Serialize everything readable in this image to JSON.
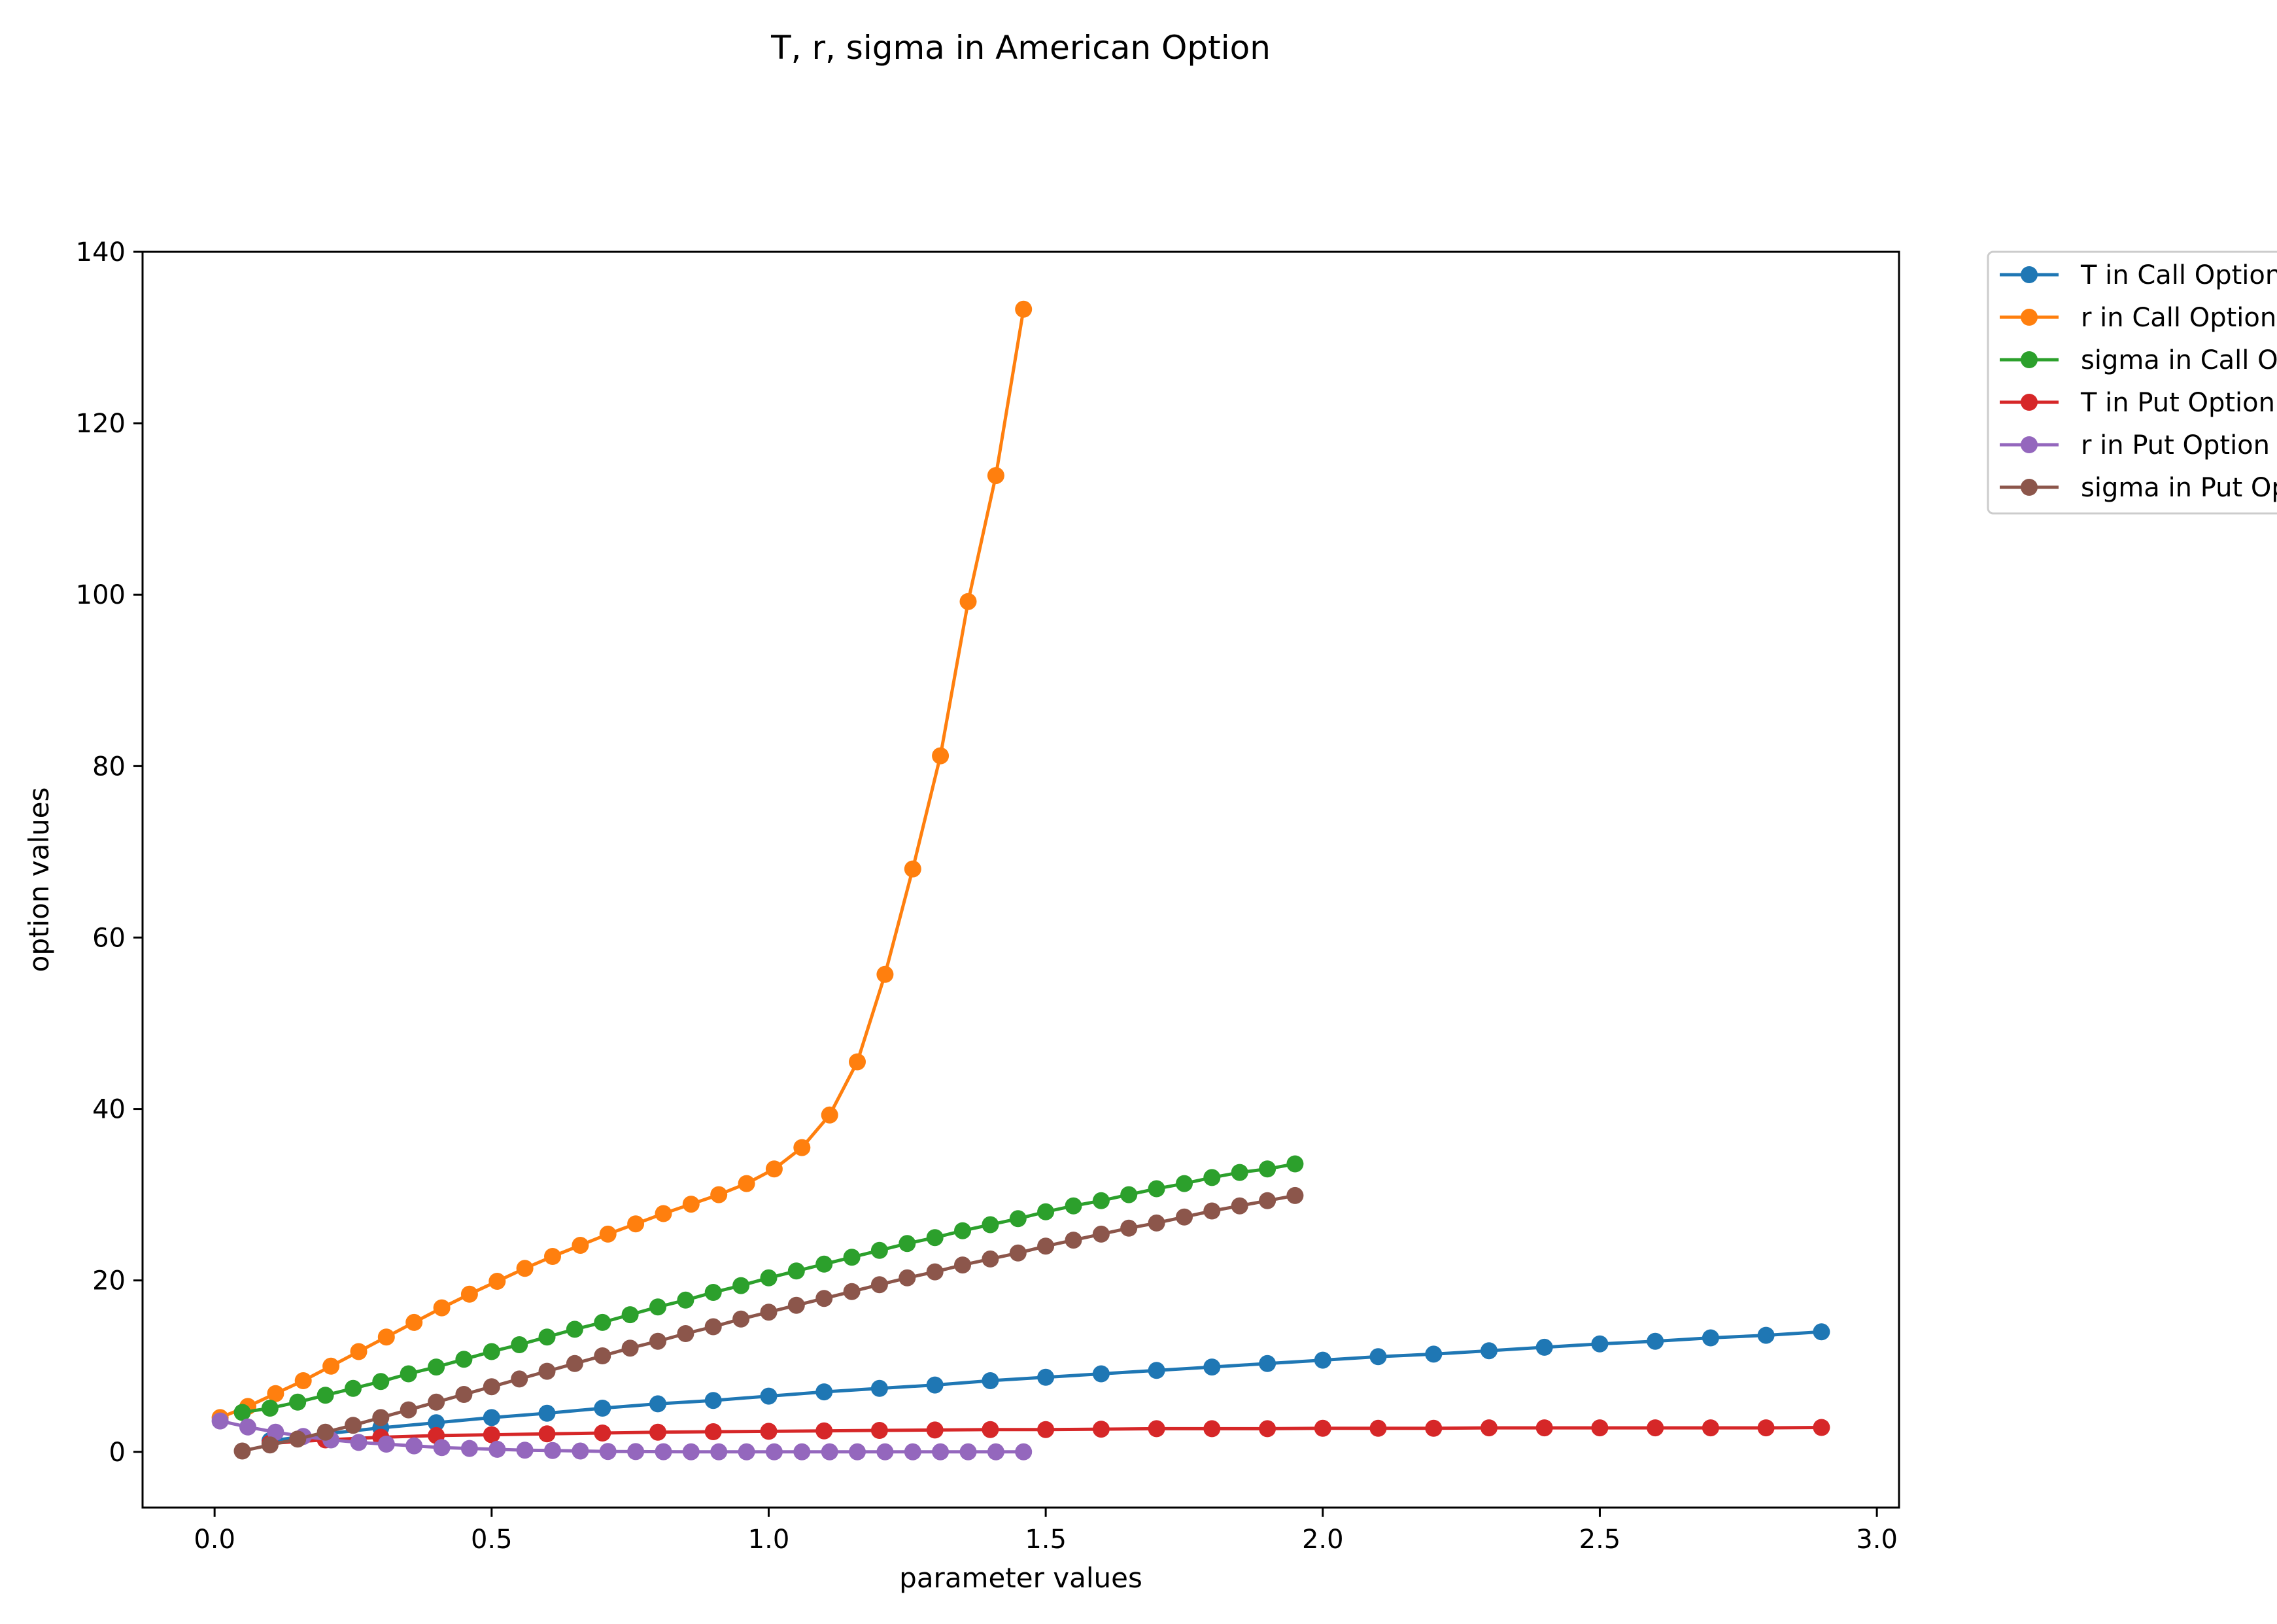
{
  "chart_data": {
    "type": "line",
    "title": "T, r, sigma in American Option",
    "xlabel": "parameter values",
    "ylabel": "option values",
    "xlim": [
      -0.13,
      3.04
    ],
    "ylim": [
      -6.5,
      140
    ],
    "xticks": [
      0.0,
      0.5,
      1.0,
      1.5,
      2.0,
      2.5,
      3.0
    ],
    "xtick_labels": [
      "0.0",
      "0.5",
      "1.0",
      "1.5",
      "2.0",
      "2.5",
      "3.0"
    ],
    "yticks": [
      0,
      20,
      40,
      60,
      80,
      100,
      120,
      140
    ],
    "ytick_labels": [
      "0",
      "20",
      "40",
      "60",
      "80",
      "100",
      "120",
      "140"
    ],
    "grid": false,
    "legend_position": "outside-top-right",
    "series": [
      {
        "name": "T in Call Option",
        "color": "#1f77b4",
        "x": [
          0.1,
          0.2,
          0.3,
          0.4,
          0.5,
          0.6,
          0.7,
          0.8,
          0.9,
          1.0,
          1.1,
          1.2,
          1.3,
          1.4,
          1.5,
          1.6,
          1.7,
          1.8,
          1.9,
          2.0,
          2.1,
          2.2,
          2.3,
          2.4,
          2.5,
          2.6,
          2.7,
          2.8,
          2.9
        ],
        "y": [
          1.3,
          2.1,
          2.8,
          3.4,
          4.0,
          4.5,
          5.1,
          5.6,
          6.0,
          6.5,
          7.0,
          7.4,
          7.8,
          8.3,
          8.7,
          9.1,
          9.5,
          9.9,
          10.3,
          10.7,
          11.1,
          11.4,
          11.8,
          12.2,
          12.6,
          12.9,
          13.3,
          13.6,
          14.0
        ]
      },
      {
        "name": "r in Call Option",
        "color": "#ff7f0e",
        "x": [
          0.01,
          0.06,
          0.11,
          0.16,
          0.21,
          0.26,
          0.31,
          0.36,
          0.41,
          0.46,
          0.51,
          0.56,
          0.61,
          0.66,
          0.71,
          0.76,
          0.81,
          0.86,
          0.91,
          0.96,
          1.01,
          1.06,
          1.11,
          1.16,
          1.21,
          1.26,
          1.31,
          1.36,
          1.41,
          1.46
        ],
        "y": [
          4.0,
          5.3,
          6.8,
          8.3,
          10.0,
          11.7,
          13.4,
          15.1,
          16.8,
          18.4,
          19.9,
          21.4,
          22.8,
          24.1,
          25.4,
          26.6,
          27.8,
          28.9,
          30.0,
          31.3,
          33.0,
          35.5,
          39.3,
          45.5,
          55.7,
          68.0,
          81.2,
          99.2,
          113.9,
          133.3
        ]
      },
      {
        "name": "sigma in Call Option",
        "color": "#2ca02c",
        "x": [
          0.05,
          0.1,
          0.15,
          0.2,
          0.25,
          0.3,
          0.35,
          0.4,
          0.45,
          0.5,
          0.55,
          0.6,
          0.65,
          0.7,
          0.75,
          0.8,
          0.85,
          0.9,
          0.95,
          1.0,
          1.05,
          1.1,
          1.15,
          1.2,
          1.25,
          1.3,
          1.35,
          1.4,
          1.45,
          1.5,
          1.55,
          1.6,
          1.65,
          1.7,
          1.75,
          1.8,
          1.85,
          1.9,
          1.95
        ],
        "y": [
          4.6,
          5.1,
          5.8,
          6.6,
          7.4,
          8.2,
          9.1,
          9.9,
          10.8,
          11.7,
          12.5,
          13.4,
          14.3,
          15.1,
          16.0,
          16.9,
          17.7,
          18.6,
          19.4,
          20.3,
          21.1,
          21.9,
          22.7,
          23.5,
          24.3,
          25.0,
          25.8,
          26.5,
          27.2,
          28.0,
          28.7,
          29.3,
          30.0,
          30.7,
          31.3,
          32.0,
          32.6,
          33.0,
          33.6
        ]
      },
      {
        "name": "T in Put Option",
        "color": "#d62728",
        "x": [
          0.1,
          0.2,
          0.3,
          0.4,
          0.5,
          0.6,
          0.7,
          0.8,
          0.9,
          1.0,
          1.1,
          1.2,
          1.3,
          1.4,
          1.5,
          1.6,
          1.7,
          1.8,
          1.9,
          2.0,
          2.1,
          2.2,
          2.3,
          2.4,
          2.5,
          2.6,
          2.7,
          2.8,
          2.9
        ],
        "y": [
          1.0,
          1.4,
          1.7,
          1.9,
          2.0,
          2.1,
          2.2,
          2.3,
          2.35,
          2.4,
          2.45,
          2.5,
          2.55,
          2.6,
          2.6,
          2.65,
          2.7,
          2.7,
          2.7,
          2.75,
          2.75,
          2.75,
          2.8,
          2.8,
          2.8,
          2.8,
          2.8,
          2.8,
          2.85
        ]
      },
      {
        "name": "r in Put Option",
        "color": "#9467bd",
        "x": [
          0.01,
          0.06,
          0.11,
          0.16,
          0.21,
          0.26,
          0.31,
          0.36,
          0.41,
          0.46,
          0.51,
          0.56,
          0.61,
          0.66,
          0.71,
          0.76,
          0.81,
          0.86,
          0.91,
          0.96,
          1.01,
          1.06,
          1.11,
          1.16,
          1.21,
          1.26,
          1.31,
          1.36,
          1.41,
          1.46
        ],
        "y": [
          3.6,
          2.9,
          2.3,
          1.8,
          1.4,
          1.1,
          0.9,
          0.7,
          0.5,
          0.4,
          0.3,
          0.2,
          0.15,
          0.1,
          0.05,
          0.03,
          0.02,
          0.01,
          0.0,
          0.0,
          0.0,
          0.0,
          0.0,
          0.0,
          0.0,
          0.0,
          0.0,
          0.0,
          0.0,
          0.0
        ]
      },
      {
        "name": "sigma in Put Option",
        "color": "#8c564b",
        "x": [
          0.05,
          0.1,
          0.15,
          0.2,
          0.25,
          0.3,
          0.35,
          0.4,
          0.45,
          0.5,
          0.55,
          0.6,
          0.65,
          0.7,
          0.75,
          0.8,
          0.85,
          0.9,
          0.95,
          1.0,
          1.05,
          1.1,
          1.15,
          1.2,
          1.25,
          1.3,
          1.35,
          1.4,
          1.45,
          1.5,
          1.55,
          1.6,
          1.65,
          1.7,
          1.75,
          1.8,
          1.85,
          1.9,
          1.95
        ],
        "y": [
          0.1,
          0.8,
          1.5,
          2.3,
          3.1,
          4.0,
          4.9,
          5.8,
          6.7,
          7.6,
          8.5,
          9.4,
          10.3,
          11.2,
          12.1,
          12.9,
          13.8,
          14.6,
          15.5,
          16.3,
          17.1,
          17.9,
          18.7,
          19.5,
          20.3,
          21.0,
          21.8,
          22.5,
          23.2,
          24.0,
          24.7,
          25.4,
          26.1,
          26.7,
          27.4,
          28.1,
          28.7,
          29.3,
          29.9
        ]
      }
    ]
  }
}
